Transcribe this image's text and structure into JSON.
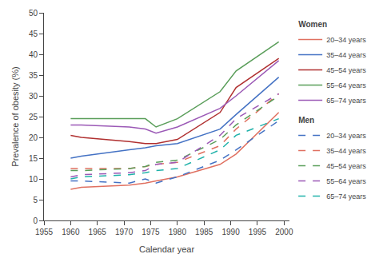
{
  "chart_data": {
    "type": "line",
    "xlabel": "Calendar year",
    "ylabel": "Prevalence of obesity (%)",
    "xlim": [
      1955,
      2001
    ],
    "ylim": [
      0,
      50
    ],
    "xticks": [
      1955,
      1960,
      1965,
      1970,
      1975,
      1980,
      1985,
      1990,
      1995,
      2000
    ],
    "yticks": [
      0,
      5,
      10,
      15,
      20,
      25,
      30,
      35,
      40,
      45,
      50
    ],
    "grid": false,
    "legend": "right",
    "x": [
      1960,
      1962,
      1971,
      1974,
      1976,
      1980,
      1988,
      1991,
      1999
    ],
    "groups": [
      {
        "name": "Women",
        "line_style": "solid",
        "series": [
          {
            "name": "20–34 years",
            "color": "#e07060",
            "values": [
              7.5,
              8.0,
              8.5,
              9.0,
              9.5,
              10.5,
              13.5,
              16.0,
              26.0
            ]
          },
          {
            "name": "35–44 years",
            "color": "#4472c4",
            "values": [
              15.0,
              15.5,
              17.0,
              17.5,
              18.0,
              18.5,
              22.0,
              25.5,
              34.5
            ]
          },
          {
            "name": "45–54 years",
            "color": "#b03030",
            "values": [
              20.5,
              20.0,
              19.0,
              18.5,
              18.5,
              19.5,
              26.0,
              32.0,
              39.0
            ]
          },
          {
            "name": "55–64 years",
            "color": "#5a9e5a",
            "values": [
              24.5,
              24.5,
              24.5,
              24.5,
              22.5,
              24.5,
              31.0,
              36.0,
              43.0
            ]
          },
          {
            "name": "65–74 years",
            "color": "#9b59b6",
            "values": [
              23.0,
              23.0,
              22.5,
              22.0,
              21.0,
              22.5,
              27.0,
              30.0,
              38.5
            ]
          }
        ]
      },
      {
        "name": "Men",
        "line_style": "dash",
        "series": [
          {
            "name": "20–34 years",
            "color": "#4472c4",
            "values": [
              9.5,
              9.5,
              9.0,
              10.0,
              9.0,
              10.5,
              14.5,
              17.0,
              24.0
            ]
          },
          {
            "name": "35–44 years",
            "color": "#e07060",
            "values": [
              12.5,
              12.5,
              12.5,
              13.0,
              13.5,
              14.0,
              18.0,
              22.0,
              30.5
            ]
          },
          {
            "name": "45–54 years",
            "color": "#5a9e5a",
            "values": [
              12.0,
              12.0,
              12.5,
              13.0,
              14.0,
              14.5,
              19.5,
              23.0,
              30.0
            ]
          },
          {
            "name": "55–64 years",
            "color": "#9b59b6",
            "values": [
              10.5,
              11.0,
              11.5,
              12.0,
              13.5,
              14.0,
              20.5,
              24.5,
              30.5
            ]
          },
          {
            "name": "65–74 years",
            "color": "#20b2aa",
            "values": [
              10.0,
              10.5,
              11.0,
              11.5,
              12.0,
              12.5,
              17.0,
              20.5,
              24.5
            ]
          }
        ]
      }
    ]
  }
}
